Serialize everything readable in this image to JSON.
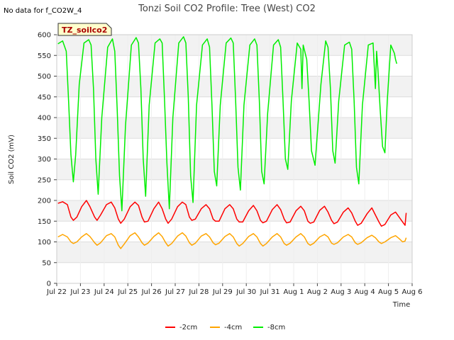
{
  "chart_data": {
    "type": "line",
    "title": "Tonzi Soil CO2 Profile: Tree (West) CO2",
    "xlabel": "Time",
    "ylabel": "Soil CO2 (mV)",
    "no_data_note": "No data for f_CO2W_4",
    "badge_label": "TZ_soilco2",
    "ylim": [
      0,
      600
    ],
    "yticks": [
      0,
      50,
      100,
      150,
      200,
      250,
      300,
      350,
      400,
      450,
      500,
      550,
      600
    ],
    "xlim": [
      0,
      15
    ],
    "xtick_labels": [
      "Jul 22",
      "Jul 23",
      "Jul 24",
      "Jul 25",
      "Jul 26",
      "Jul 27",
      "Jul 28",
      "Jul 29",
      "Jul 30",
      "Jul 31",
      "Aug 1",
      "Aug 2",
      "Aug 3",
      "Aug 4",
      "Aug 5",
      "Aug 6"
    ],
    "grid": true,
    "legend_position": "bottom",
    "series": [
      {
        "name": "-2cm",
        "color": "#ff0000",
        "x": [
          0.05,
          0.25,
          0.45,
          0.6,
          0.7,
          0.85,
          1.05,
          1.25,
          1.4,
          1.6,
          1.7,
          1.85,
          2.1,
          2.3,
          2.45,
          2.6,
          2.7,
          2.85,
          3.1,
          3.3,
          3.45,
          3.6,
          3.7,
          3.85,
          4.1,
          4.3,
          4.45,
          4.6,
          4.7,
          4.85,
          5.1,
          5.3,
          5.45,
          5.6,
          5.7,
          5.85,
          6.1,
          6.3,
          6.45,
          6.6,
          6.7,
          6.85,
          7.1,
          7.3,
          7.45,
          7.6,
          7.7,
          7.85,
          8.1,
          8.3,
          8.45,
          8.6,
          8.7,
          8.85,
          9.1,
          9.3,
          9.45,
          9.6,
          9.7,
          9.85,
          10.1,
          10.3,
          10.45,
          10.6,
          10.7,
          10.85,
          11.1,
          11.3,
          11.45,
          11.6,
          11.7,
          11.85,
          12.1,
          12.3,
          12.45,
          12.6,
          12.7,
          12.85,
          13.1,
          13.3,
          13.45,
          13.6,
          13.7,
          13.85,
          14.1,
          14.3,
          14.45,
          14.6,
          14.7,
          14.75
        ],
        "values": [
          193,
          197,
          190,
          160,
          152,
          160,
          185,
          200,
          185,
          160,
          152,
          165,
          190,
          196,
          182,
          155,
          145,
          155,
          185,
          196,
          188,
          160,
          148,
          150,
          180,
          196,
          180,
          155,
          145,
          155,
          185,
          196,
          190,
          160,
          152,
          155,
          180,
          190,
          180,
          155,
          150,
          150,
          180,
          190,
          180,
          155,
          148,
          148,
          175,
          188,
          175,
          152,
          146,
          150,
          178,
          190,
          178,
          155,
          146,
          148,
          175,
          186,
          175,
          150,
          145,
          148,
          176,
          186,
          172,
          152,
          144,
          148,
          172,
          182,
          170,
          150,
          140,
          145,
          168,
          182,
          165,
          148,
          138,
          142,
          165,
          172,
          160,
          148,
          140,
          170
        ]
      },
      {
        "name": "-4cm",
        "color": "#ffa500",
        "x": [
          0.05,
          0.25,
          0.45,
          0.6,
          0.7,
          0.85,
          1.05,
          1.25,
          1.4,
          1.6,
          1.7,
          1.85,
          2.1,
          2.3,
          2.45,
          2.6,
          2.7,
          2.85,
          3.1,
          3.3,
          3.45,
          3.6,
          3.7,
          3.85,
          4.1,
          4.3,
          4.45,
          4.6,
          4.7,
          4.85,
          5.1,
          5.3,
          5.45,
          5.6,
          5.7,
          5.85,
          6.1,
          6.3,
          6.45,
          6.6,
          6.7,
          6.85,
          7.1,
          7.3,
          7.45,
          7.6,
          7.7,
          7.85,
          8.1,
          8.3,
          8.45,
          8.6,
          8.7,
          8.85,
          9.1,
          9.3,
          9.45,
          9.6,
          9.7,
          9.85,
          10.1,
          10.3,
          10.45,
          10.6,
          10.7,
          10.85,
          11.1,
          11.3,
          11.45,
          11.6,
          11.7,
          11.85,
          12.1,
          12.3,
          12.45,
          12.6,
          12.7,
          12.85,
          13.1,
          13.3,
          13.45,
          13.6,
          13.7,
          13.85,
          14.1,
          14.3,
          14.45,
          14.6,
          14.7,
          14.75
        ],
        "values": [
          112,
          118,
          112,
          100,
          96,
          100,
          112,
          120,
          113,
          98,
          92,
          98,
          115,
          120,
          112,
          92,
          84,
          95,
          115,
          122,
          112,
          98,
          92,
          97,
          113,
          122,
          113,
          98,
          90,
          96,
          114,
          122,
          114,
          98,
          92,
          97,
          114,
          120,
          112,
          98,
          93,
          97,
          113,
          120,
          112,
          96,
          90,
          96,
          113,
          120,
          112,
          96,
          90,
          96,
          112,
          120,
          112,
          96,
          92,
          97,
          112,
          120,
          112,
          96,
          92,
          97,
          112,
          118,
          112,
          97,
          94,
          98,
          112,
          118,
          112,
          98,
          94,
          98,
          110,
          116,
          110,
          100,
          96,
          100,
          110,
          115,
          108,
          100,
          102,
          110
        ]
      },
      {
        "name": "-8cm",
        "color": "#00ee00",
        "x": [
          0.05,
          0.25,
          0.4,
          0.5,
          0.6,
          0.7,
          0.8,
          0.95,
          1.15,
          1.35,
          1.45,
          1.55,
          1.65,
          1.75,
          1.9,
          2.15,
          2.35,
          2.45,
          2.55,
          2.65,
          2.75,
          2.9,
          3.15,
          3.35,
          3.45,
          3.55,
          3.65,
          3.75,
          3.9,
          4.15,
          4.35,
          4.45,
          4.55,
          4.65,
          4.75,
          4.9,
          5.15,
          5.35,
          5.45,
          5.55,
          5.65,
          5.75,
          5.9,
          6.15,
          6.35,
          6.45,
          6.55,
          6.65,
          6.75,
          6.9,
          7.15,
          7.35,
          7.45,
          7.55,
          7.65,
          7.75,
          7.9,
          8.15,
          8.35,
          8.45,
          8.55,
          8.65,
          8.75,
          8.9,
          9.15,
          9.35,
          9.45,
          9.55,
          9.65,
          9.75,
          9.9,
          10.15,
          10.3,
          10.35,
          10.4,
          10.55,
          10.65,
          10.75,
          10.9,
          11.15,
          11.35,
          11.45,
          11.55,
          11.65,
          11.75,
          11.9,
          12.15,
          12.35,
          12.45,
          12.55,
          12.65,
          12.75,
          12.9,
          13.15,
          13.35,
          13.45,
          13.5,
          13.55,
          13.65,
          13.75,
          13.85,
          13.95,
          14.1,
          14.25,
          14.3,
          14.35
        ],
        "values": [
          578,
          585,
          560,
          440,
          310,
          245,
          310,
          480,
          580,
          588,
          575,
          470,
          300,
          215,
          400,
          570,
          590,
          560,
          420,
          260,
          175,
          380,
          575,
          593,
          580,
          470,
          300,
          210,
          430,
          580,
          590,
          580,
          440,
          290,
          180,
          400,
          580,
          595,
          580,
          450,
          260,
          195,
          430,
          575,
          590,
          570,
          430,
          270,
          235,
          430,
          580,
          592,
          580,
          440,
          280,
          225,
          430,
          575,
          590,
          575,
          440,
          270,
          240,
          410,
          575,
          588,
          570,
          440,
          300,
          275,
          440,
          580,
          565,
          470,
          575,
          540,
          440,
          320,
          285,
          480,
          585,
          570,
          470,
          320,
          290,
          440,
          575,
          582,
          565,
          440,
          280,
          240,
          430,
          575,
          580,
          470,
          560,
          520,
          420,
          330,
          315,
          440,
          575,
          555,
          540,
          530
        ]
      }
    ]
  }
}
